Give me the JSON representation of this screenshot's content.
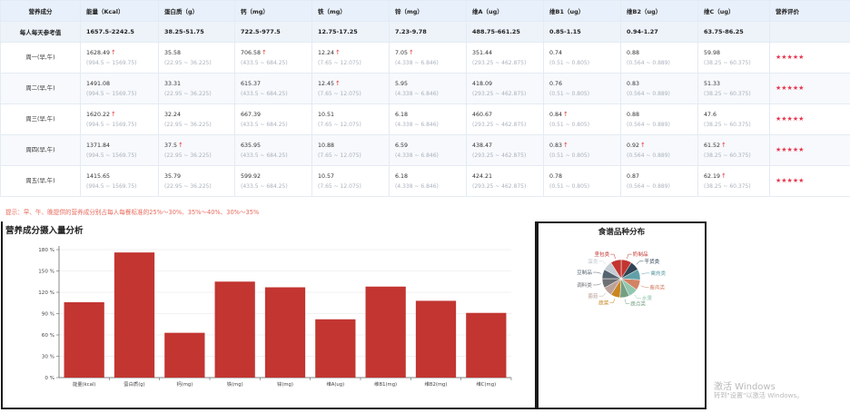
{
  "table": {
    "headers": [
      "营养成分",
      "能量（Kcal）",
      "蛋白质（g）",
      "钙（mg）",
      "铁（mg）",
      "锌（mg）",
      "维A（ug）",
      "维B1（ug）",
      "维B2（ug）",
      "维C（ug）",
      "营养评价"
    ],
    "reference": {
      "label": "每人每天参考值",
      "values": [
        "1657.5-2242.5",
        "38.25-51.75",
        "722.5-977.5",
        "12.75-17.25",
        "7.23-9.78",
        "488.75-661.25",
        "0.85-1.15",
        "0.94-1.27",
        "63.75-86.25"
      ]
    },
    "rows": [
      {
        "day": "周一(早,午)",
        "cells": [
          {
            "value": "1628.49",
            "up": true,
            "range": "(994.5 ~ 1569.75)"
          },
          {
            "value": "35.58",
            "up": false,
            "range": "(22.95 ~ 36.225)"
          },
          {
            "value": "706.58",
            "up": true,
            "range": "(433.5 ~ 684.25)"
          },
          {
            "value": "12.24",
            "up": true,
            "range": "(7.65 ~ 12.075)"
          },
          {
            "value": "7.05",
            "up": true,
            "range": "(4.338 ~ 6.846)"
          },
          {
            "value": "351.44",
            "up": false,
            "range": "(293.25 ~ 462.875)"
          },
          {
            "value": "0.74",
            "up": false,
            "range": "(0.51 ~ 0.805)"
          },
          {
            "value": "0.88",
            "up": false,
            "range": "(0.564 ~ 0.889)"
          },
          {
            "value": "59.98",
            "up": false,
            "range": "(38.25 ~ 60.375)"
          }
        ],
        "rating": "★★★★★"
      },
      {
        "day": "周二(早,午)",
        "cells": [
          {
            "value": "1491.08",
            "up": false,
            "range": "(994.5 ~ 1569.75)"
          },
          {
            "value": "33.31",
            "up": false,
            "range": "(22.95 ~ 36.225)"
          },
          {
            "value": "615.37",
            "up": false,
            "range": "(433.5 ~ 684.25)"
          },
          {
            "value": "12.45",
            "up": true,
            "range": "(7.65 ~ 12.075)"
          },
          {
            "value": "5.95",
            "up": false,
            "range": "(4.338 ~ 6.846)"
          },
          {
            "value": "418.09",
            "up": false,
            "range": "(293.25 ~ 462.875)"
          },
          {
            "value": "0.76",
            "up": false,
            "range": "(0.51 ~ 0.805)"
          },
          {
            "value": "0.83",
            "up": false,
            "range": "(0.564 ~ 0.889)"
          },
          {
            "value": "51.33",
            "up": false,
            "range": "(38.25 ~ 60.375)"
          }
        ],
        "rating": "★★★★★"
      },
      {
        "day": "周三(早,午)",
        "cells": [
          {
            "value": "1620.22",
            "up": true,
            "range": "(994.5 ~ 1569.75)"
          },
          {
            "value": "32.24",
            "up": false,
            "range": "(22.95 ~ 36.225)"
          },
          {
            "value": "667.39",
            "up": false,
            "range": "(433.5 ~ 684.25)"
          },
          {
            "value": "10.51",
            "up": false,
            "range": "(7.65 ~ 12.075)"
          },
          {
            "value": "6.18",
            "up": false,
            "range": "(4.338 ~ 6.846)"
          },
          {
            "value": "460.67",
            "up": false,
            "range": "(293.25 ~ 462.875)"
          },
          {
            "value": "0.84",
            "up": true,
            "range": "(0.51 ~ 0.805)"
          },
          {
            "value": "0.88",
            "up": false,
            "range": "(0.564 ~ 0.889)"
          },
          {
            "value": "47.6",
            "up": false,
            "range": "(38.25 ~ 60.375)"
          }
        ],
        "rating": "★★★★★"
      },
      {
        "day": "周四(早,午)",
        "cells": [
          {
            "value": "1371.84",
            "up": false,
            "range": "(994.5 ~ 1569.75)"
          },
          {
            "value": "37.5",
            "up": true,
            "range": "(22.95 ~ 36.225)"
          },
          {
            "value": "635.95",
            "up": false,
            "range": "(433.5 ~ 684.25)"
          },
          {
            "value": "10.88",
            "up": false,
            "range": "(7.65 ~ 12.075)"
          },
          {
            "value": "6.59",
            "up": false,
            "range": "(4.338 ~ 6.846)"
          },
          {
            "value": "438.47",
            "up": false,
            "range": "(293.25 ~ 462.875)"
          },
          {
            "value": "0.83",
            "up": true,
            "range": "(0.51 ~ 0.805)"
          },
          {
            "value": "0.92",
            "up": true,
            "range": "(0.564 ~ 0.889)"
          },
          {
            "value": "61.52",
            "up": true,
            "range": "(38.25 ~ 60.375)"
          }
        ],
        "rating": "★★★★★"
      },
      {
        "day": "周五(早,午)",
        "cells": [
          {
            "value": "1415.65",
            "up": false,
            "range": "(994.5 ~ 1569.75)"
          },
          {
            "value": "35.79",
            "up": false,
            "range": "(22.95 ~ 36.225)"
          },
          {
            "value": "599.92",
            "up": false,
            "range": "(433.5 ~ 684.25)"
          },
          {
            "value": "10.57",
            "up": false,
            "range": "(7.65 ~ 12.075)"
          },
          {
            "value": "6.18",
            "up": false,
            "range": "(4.338 ~ 6.846)"
          },
          {
            "value": "424.21",
            "up": false,
            "range": "(293.25 ~ 462.875)"
          },
          {
            "value": "0.78",
            "up": false,
            "range": "(0.51 ~ 0.805)"
          },
          {
            "value": "0.87",
            "up": false,
            "range": "(0.564 ~ 0.889)"
          },
          {
            "value": "62.19",
            "up": true,
            "range": "(38.25 ~ 60.375)"
          }
        ],
        "rating": "★★★★★"
      }
    ],
    "up_arrow": "↑"
  },
  "tip": "提示：早、午、晚提供的营养成分别占每人每餐标准的25%～30%、35%～40%、30%～35%",
  "panels": {
    "bar_title": "营养成分摄入量分析",
    "pie_title": "食谱品种分布"
  },
  "colors": {
    "bar": "#c23531",
    "up_arrow": "#e03b3b",
    "stars": "#e8364f",
    "tip": "#e86a5b",
    "header_bg": "#e8f0fb"
  },
  "chart_data": [
    {
      "type": "bar",
      "title": "营养成分摄入量分析",
      "categories": [
        "能量(kcal)",
        "蛋白质(g)",
        "钙(mg)",
        "铁(mg)",
        "锌(mg)",
        "维A(ug)",
        "维B1(mg)",
        "维B2(mg)",
        "维C(mg)"
      ],
      "values": [
        106,
        176,
        63,
        135,
        127,
        82,
        128,
        108,
        91
      ],
      "ylim": [
        0,
        180
      ],
      "yticks": [
        "0 %",
        "30 %",
        "60 %",
        "90 %",
        "120 %",
        "150 %",
        "180 %"
      ],
      "grid": true
    },
    {
      "type": "pie",
      "title": "食谱品种分布",
      "slices": [
        {
          "label": "奶制品",
          "value": 9,
          "color": "#c23531",
          "side": "right"
        },
        {
          "label": "干货类",
          "value": 8,
          "color": "#2f4554",
          "side": "right"
        },
        {
          "label": "禽肉类",
          "value": 9,
          "color": "#61a0a8",
          "side": "right"
        },
        {
          "label": "畜肉类",
          "value": 9,
          "color": "#d48265",
          "side": "right"
        },
        {
          "label": "水果",
          "value": 8,
          "color": "#91c7ae",
          "side": "right"
        },
        {
          "label": "蔬点类",
          "value": 8,
          "color": "#749f83",
          "side": "right"
        },
        {
          "label": "蔬菜",
          "value": 8,
          "color": "#ca8622",
          "side": "left"
        },
        {
          "label": "菌菇",
          "value": 8,
          "color": "#bda29a",
          "side": "left"
        },
        {
          "label": "调料类",
          "value": 8,
          "color": "#6e7074",
          "side": "left"
        },
        {
          "label": "豆制品",
          "value": 8,
          "color": "#546570",
          "side": "left"
        },
        {
          "label": "蛋类",
          "value": 8,
          "color": "#c4ccd3",
          "side": "left"
        },
        {
          "label": "坚包类",
          "value": 9,
          "color": "#c23531",
          "side": "left"
        }
      ]
    }
  ],
  "watermark": {
    "line1": "激活 Windows",
    "line2": "转到\"设置\"以激活 Windows。"
  }
}
